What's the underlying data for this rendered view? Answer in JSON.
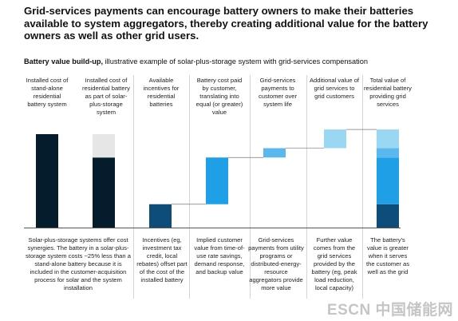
{
  "title": "Grid-services payments can encourage battery owners to make their batteries available to system aggregators, thereby creating additional value for the battery owners as well as other grid users.",
  "subtitle_lead": "Battery value build-up,",
  "subtitle_rest": " illustrative example of solar-plus-storage system with grid-services compensation",
  "watermark": "ESCN 中国储能网",
  "colors": {
    "dark_navy": "#051c2c",
    "navy": "#0e4c79",
    "blue": "#1f9fe6",
    "light_blue": "#5bb8ec",
    "pale_blue": "#9ad7f2",
    "light_gray": "#e6e6e6"
  },
  "chart_data": {
    "type": "waterfall",
    "columns": [
      {
        "label": "Installed cost of stand-alone residential battery system"
      },
      {
        "label": "Installed cost of residential battery as part of solar-plus-storage system"
      },
      {
        "label": "Available incentives for residential batteries"
      },
      {
        "label": "Battery cost paid by customer, translating into equal (or greater) value"
      },
      {
        "label": "Grid-services payments to customer over system life"
      },
      {
        "label": "Additional value of grid services to grid customers"
      },
      {
        "label": "Total value of residential battery providing grid services"
      }
    ],
    "descriptions": [
      "Solar-plus-storage systems offer cost synergies. The battery in a solar-plus-storage system costs ~25% less than a stand-alone battery because it is included in the customer-acquisition process for solar and the system installation",
      "Incentives (eg, investment tax credit, local rebates) offset part of the cost of the installed battery",
      "Implied customer value from time-of-use rate savings, demand response, and backup value",
      "Grid-services payments from utility programs or distributed-energy-resource aggregators provide more value",
      "Further value comes from the grid services provided by the battery (eg, peak load reduction, local capacity)",
      "The battery's value is greater when it serves the customer as well as the grid"
    ],
    "values": {
      "standalone_cost": 100,
      "solar_plus_storage_cost": 75,
      "incentives": 25,
      "customer_paid": 50,
      "grid_services_payments": 10,
      "additional_grid_value": 20
    }
  }
}
